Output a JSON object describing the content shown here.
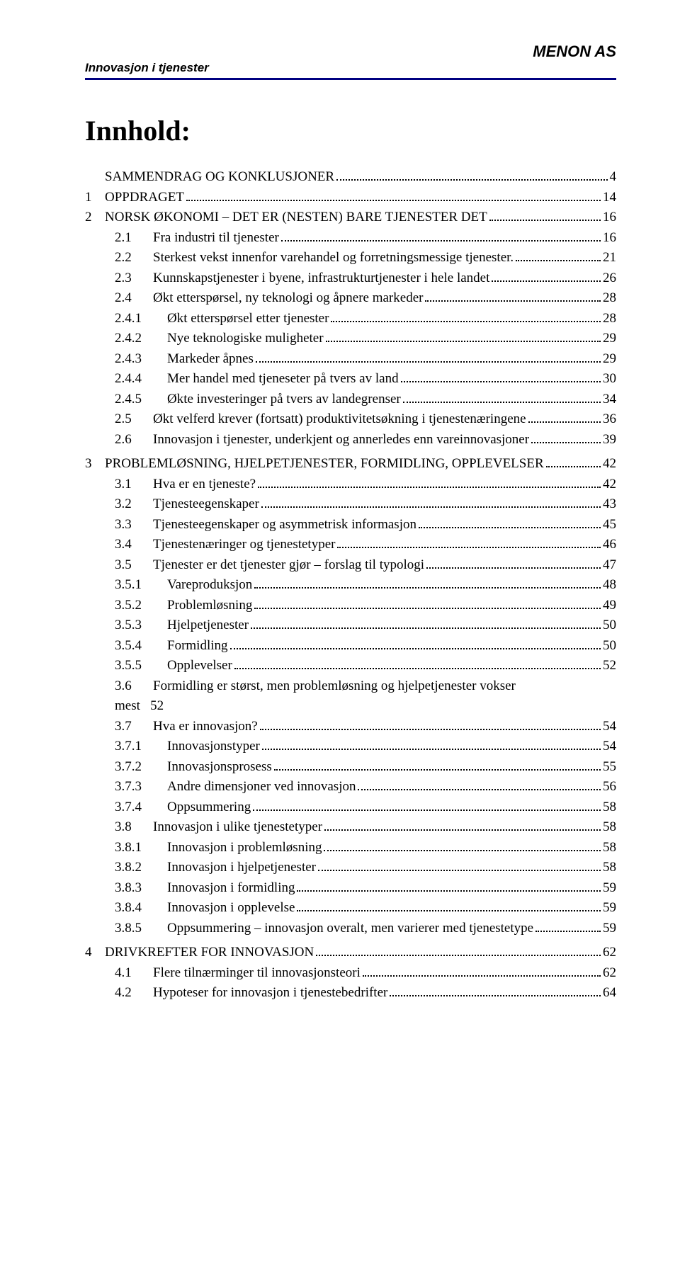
{
  "header": {
    "right": "MENON AS",
    "left": "Innovasjon i tjenester"
  },
  "title": "Innhold:",
  "toc": [
    {
      "lvl": "a",
      "num": "",
      "txt": "SAMMENDRAG OG KONKLUSJONER",
      "pg": "4"
    },
    {
      "lvl": "0",
      "num": "1",
      "txt": "OPPDRAGET",
      "pg": "14"
    },
    {
      "lvl": "0",
      "num": "2",
      "txt": "NORSK ØKONOMI – DET ER (NESTEN) BARE TJENESTER DET",
      "pg": "16"
    },
    {
      "lvl": "1",
      "num": "2.1",
      "txt": "Fra industri til tjenester",
      "pg": "16"
    },
    {
      "lvl": "1",
      "num": "2.2",
      "txt": "Sterkest vekst innenfor varehandel og forretningsmessige tjenester.",
      "pg": "21"
    },
    {
      "lvl": "1",
      "num": "2.3",
      "txt": "Kunnskapstjenester i byene, infrastrukturtjenester i hele landet",
      "pg": "26"
    },
    {
      "lvl": "1",
      "num": "2.4",
      "txt": "Økt etterspørsel, ny teknologi og åpnere markeder",
      "pg": "28"
    },
    {
      "lvl": "2",
      "num": "2.4.1",
      "txt": "Økt etterspørsel etter tjenester",
      "pg": "28"
    },
    {
      "lvl": "2",
      "num": "2.4.2",
      "txt": "Nye teknologiske muligheter",
      "pg": "29"
    },
    {
      "lvl": "2",
      "num": "2.4.3",
      "txt": "Markeder åpnes",
      "pg": "29"
    },
    {
      "lvl": "2",
      "num": "2.4.4",
      "txt": "Mer handel med tjeneseter på tvers av land",
      "pg": "30"
    },
    {
      "lvl": "2",
      "num": "2.4.5",
      "txt": "Økte investeringer på tvers av landegrenser",
      "pg": "34"
    },
    {
      "lvl": "1",
      "num": "2.5",
      "txt": "Økt velferd krever (fortsatt) produktivitetsøkning i tjenestenæringene",
      "pg": "36"
    },
    {
      "lvl": "1",
      "num": "2.6",
      "txt": "Innovasjon i tjenester, underkjent og annerledes enn vareinnovasjoner",
      "pg": "39"
    },
    {
      "lvl": "0",
      "num": "3",
      "txt": "PROBLEMLØSNING, HJELPETJENESTER, FORMIDLING, OPPLEVELSER",
      "pg": "42",
      "gap": true
    },
    {
      "lvl": "1",
      "num": "3.1",
      "txt": "Hva er en tjeneste?",
      "pg": "42"
    },
    {
      "lvl": "1",
      "num": "3.2",
      "txt": "Tjenesteegenskaper",
      "pg": "43"
    },
    {
      "lvl": "1",
      "num": "3.3",
      "txt": "Tjenesteegenskaper og asymmetrisk informasjon",
      "pg": "45"
    },
    {
      "lvl": "1",
      "num": "3.4",
      "txt": "Tjenestenæringer og tjenestetyper",
      "pg": "46"
    },
    {
      "lvl": "1",
      "num": "3.5",
      "txt": "Tjenester er det tjenester gjør – forslag til typologi",
      "pg": "47"
    },
    {
      "lvl": "2",
      "num": "3.5.1",
      "txt": "Vareproduksjon",
      "pg": "48"
    },
    {
      "lvl": "2",
      "num": "3.5.2",
      "txt": "Problemløsning",
      "pg": "49"
    },
    {
      "lvl": "2",
      "num": "3.5.3",
      "txt": "Hjelpetjenester",
      "pg": "50"
    },
    {
      "lvl": "2",
      "num": "3.5.4",
      "txt": "Formidling",
      "pg": "50"
    },
    {
      "lvl": "2",
      "num": "3.5.5",
      "txt": "Opplevelser",
      "pg": "52"
    },
    {
      "lvl": "1",
      "num": "3.6",
      "txt": "Formidling er størst, men problemløsning og hjelpetjenester vokser mest",
      "pg": "52",
      "nopage_dots": true
    },
    {
      "lvl": "1",
      "num": "3.7",
      "txt": "Hva er innovasjon?",
      "pg": "54"
    },
    {
      "lvl": "2",
      "num": "3.7.1",
      "txt": "Innovasjonstyper",
      "pg": "54"
    },
    {
      "lvl": "2",
      "num": "3.7.2",
      "txt": "Innovasjonsprosess",
      "pg": "55"
    },
    {
      "lvl": "2",
      "num": "3.7.3",
      "txt": "Andre dimensjoner ved innovasjon",
      "pg": "56"
    },
    {
      "lvl": "2",
      "num": "3.7.4",
      "txt": "Oppsummering",
      "pg": "58"
    },
    {
      "lvl": "1",
      "num": "3.8",
      "txt": "Innovasjon i ulike tjenestetyper",
      "pg": "58"
    },
    {
      "lvl": "2",
      "num": "3.8.1",
      "txt": "Innovasjon i problemløsning",
      "pg": "58"
    },
    {
      "lvl": "2",
      "num": "3.8.2",
      "txt": "Innovasjon i hjelpetjenester",
      "pg": "58"
    },
    {
      "lvl": "2",
      "num": "3.8.3",
      "txt": "Innovasjon i formidling",
      "pg": "59"
    },
    {
      "lvl": "2",
      "num": "3.8.4",
      "txt": "Innovasjon i opplevelse",
      "pg": "59"
    },
    {
      "lvl": "2",
      "num": "3.8.5",
      "txt": "Oppsummering – innovasjon overalt, men varierer med tjenestetype",
      "pg": "59"
    },
    {
      "lvl": "0",
      "num": "4",
      "txt": "DRIVKREFTER FOR INNOVASJON",
      "pg": "62",
      "gap": true
    },
    {
      "lvl": "1",
      "num": "4.1",
      "txt": "Flere tilnærminger til innovasjonsteori",
      "pg": "62"
    },
    {
      "lvl": "1",
      "num": "4.2",
      "txt": "Hypoteser for innovasjon i tjenestebedrifter",
      "pg": "64"
    }
  ]
}
